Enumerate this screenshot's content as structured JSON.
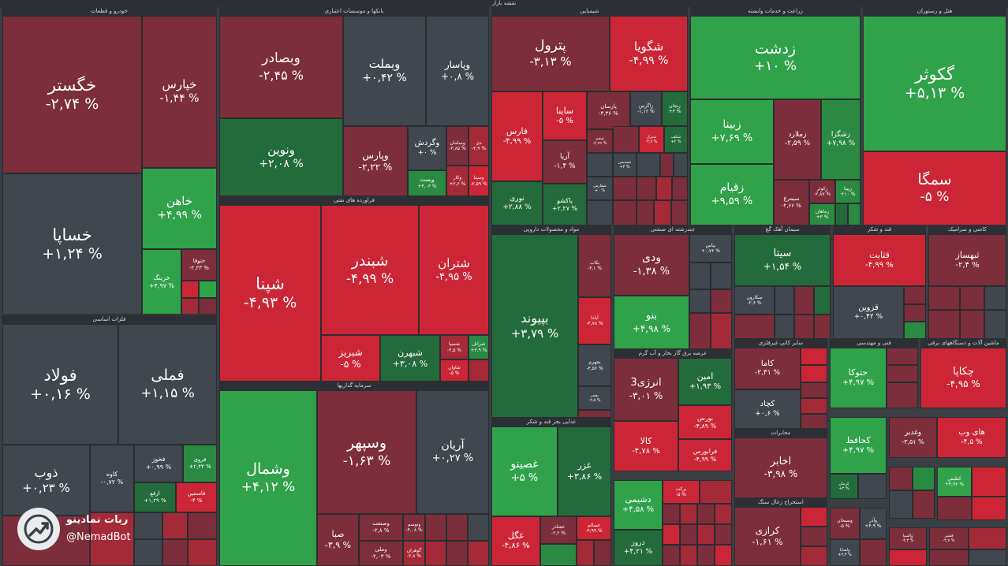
{
  "title": "نقشه بازار",
  "sectors": {
    "khodro": "خودرو و قطعات",
    "banks": "بانکها و موسسات اعتباری",
    "chemical": "شیمیایی",
    "agri": "زراعت و خدمات وابسته",
    "hotel": "هتل و رستوران",
    "metals": "فلزات اساسی",
    "refinery": "فراورده های نفتی",
    "investment": "سرمایه گذاریها",
    "mining": "استخراج کانه های فلزی",
    "food": "غذایی بجز قند و شکر",
    "pharma": "مواد و محصولات دارویی",
    "multi": "چندرشته ای صنعتی",
    "cement": "سیمان آهک گچ",
    "sugar": "قند و شکر",
    "tile": "کاشی و سرامیک",
    "utility": "عرضه برق گاز بخار و آب گرم",
    "electric": "ماشین آلات و دستگاههای برقی",
    "engineering": "فنی و مهندسی",
    "non_metal": "سایر کانی غیرفلزی",
    "computer": "رایانه",
    "transport": "حمل و نقل",
    "rubber": "لاستیک و پلاستیک",
    "insurance": "بیمه و بازنشستگی",
    "other_mining": "استخراج سایر معادن",
    "pc": "محصولات کاغذی",
    "machinery": "ماشین آلات و تجهیزات",
    "telecom": "مخابرات",
    "coal": "استخراج زغال سنگ"
  },
  "tiles": {
    "khegostar": {
      "name": "خگستر",
      "change": "-۲,۷۴ %"
    },
    "khaparsa": {
      "name": "خساپا",
      "change": "+۱,۲۴ %"
    },
    "khapars": {
      "name": "خپارس",
      "change": "-۱,۴۴ %"
    },
    "khahen": {
      "name": "خاهن",
      "change": "+۴,۹۹ %"
    },
    "kharing": {
      "name": "خرینگ",
      "change": "+۴,۹۷ %"
    },
    "khotoka": {
      "name": "ختوقا",
      "change": "-۲,۲۳ %"
    },
    "vebsader": {
      "name": "وبصادر",
      "change": "-۲,۴۵ %"
    },
    "vebmelat": {
      "name": "وبملت",
      "change": "+۰,۴۲ %"
    },
    "vapasar": {
      "name": "وپاسار",
      "change": "+۰,۸ %"
    },
    "vanovin": {
      "name": "ونوین",
      "change": "+۲,۰۸ %"
    },
    "vapars": {
      "name": "وپارس",
      "change": "-۲,۲۲ %"
    },
    "vegardesh": {
      "name": "وگردش",
      "change": "+۰ %"
    },
    "vesamen": {
      "name": "وسامان",
      "change": "-۳,۸۵ %"
    },
    "vedey": {
      "name": "دی",
      "change": "-۳,۹ %"
    },
    "vekar": {
      "name": "وکار",
      "change": "+۲,۶ %"
    },
    "vesina": {
      "name": "وسینا",
      "change": "-۲,۵۹ %"
    },
    "vest": {
      "name": "وپست",
      "change": "+۴,۰۳ %"
    },
    "petrol": {
      "name": "پترول",
      "change": "-۳,۱۳ %"
    },
    "shegoya": {
      "name": "شگویا",
      "change": "-۴,۹۹ %"
    },
    "fars": {
      "name": "فارس",
      "change": "-۴,۹۹ %"
    },
    "saina": {
      "name": "ساینا",
      "change": "-۵ %"
    },
    "parsan": {
      "name": "پارسان",
      "change": "-۳,۳۶ %"
    },
    "zagros": {
      "name": "زاگرس",
      "change": "-۱,۱۲ %"
    },
    "zanjan": {
      "name": "زنجان",
      "change": "+۳ %"
    },
    "aria": {
      "name": "آریا",
      "change": "-۱,۴ %"
    },
    "noori": {
      "name": "نوری",
      "change": "+۲,۸۸ %"
    },
    "pakhsh": {
      "name": "پاکشو",
      "change": "+۲,۲۷ %"
    },
    "ghadir": {
      "name": "شجم",
      "change": "-۲,۹۹ %"
    },
    "shiraz": {
      "name": "شیراز",
      "change": "-۴,۷ %"
    },
    "shkeb": {
      "name": "شکف",
      "change": "+۴ %"
    },
    "shpadir": {
      "name": "شپدیس",
      "change": "+۳ %"
    },
    "sharafs": {
      "name": "شفارس",
      "change": "+۰ %"
    },
    "gakoosar": {
      "name": "گکوثر",
      "change": "+۵,۱۳ %"
    },
    "semga": {
      "name": "سمگا",
      "change": "-۵ %"
    },
    "zedasht": {
      "name": "زدشت",
      "change": "+۱۰ %"
    },
    "zobina": {
      "name": "زبینا",
      "change": "+۷,۶۹ %"
    },
    "zemlard": {
      "name": "زملارد",
      "change": "-۲,۵۹ %"
    },
    "zeshgza": {
      "name": "زشگزا",
      "change": "+۷,۹۸ %"
    },
    "zeghiam": {
      "name": "زقیام",
      "change": "+۹,۵۹ %"
    },
    "sibmorgh": {
      "name": "سیمرغ",
      "change": "-۲,۶۶ %"
    },
    "zakosar": {
      "name": "زکوثر",
      "change": "-۲,۸۷ %"
    },
    "zemahya": {
      "name": "زماهان",
      "change": "+۳ %"
    },
    "zepina": {
      "name": "زپینا",
      "change": "+۱۰ %"
    },
    "foolad": {
      "name": "فولاد",
      "change": "+۰,۱۶ %"
    },
    "fameli": {
      "name": "فملی",
      "change": "+۱,۱۵ %"
    },
    "zob": {
      "name": "ذوب",
      "change": "+۰,۲۳ %"
    },
    "kave": {
      "name": "کاوه",
      "change": "-۰,۷۲ %"
    },
    "fakhooz": {
      "name": "فخوز",
      "change": "+۰,۹۹ %"
    },
    "frooy": {
      "name": "فروی",
      "change": "+۲,۴۳ %"
    },
    "arfa": {
      "name": "ارفع",
      "change": "+۱,۲۹ %"
    },
    "fasmin": {
      "name": "فاسمین",
      "change": "-۴ %"
    },
    "shepna": {
      "name": "شپنا",
      "change": "-۴,۹۳ %"
    },
    "shabandar": {
      "name": "شبندر",
      "change": "-۴,۹۹ %"
    },
    "shetran": {
      "name": "شتران",
      "change": "-۴,۹۵ %"
    },
    "shabriz": {
      "name": "شبریز",
      "change": "-۵ %"
    },
    "shebehran": {
      "name": "شبهرن",
      "change": "+۳,۰۸ %"
    },
    "sheisa": {
      "name": "شسپا",
      "change": "-۴,۵ %"
    },
    "shranol": {
      "name": "شرانل",
      "change": "+۳,۹ %"
    },
    "shavan": {
      "name": "شاوان",
      "change": "-۵ %"
    },
    "vesamal": {
      "name": "وشمال",
      "change": "+۴,۱۲ %"
    },
    "vasepahr": {
      "name": "وسپهر",
      "change": "-۱,۶۳ %"
    },
    "arian": {
      "name": "آریان",
      "change": "+۰,۲۷ %"
    },
    "saba": {
      "name": "صبا",
      "change": "-۳,۹ %"
    },
    "vesanat": {
      "name": "وصنعت",
      "change": "-۲,۸ %"
    },
    "vatoosa": {
      "name": "وتوسم",
      "change": "-۴,۰۸ %"
    },
    "vemeli": {
      "name": "وملی",
      "change": "-۲,۰۳ %"
    },
    "gohar": {
      "name": "گوهران",
      "change": "-۲,۸ %"
    },
    "bepeyvand": {
      "name": "بپیوند",
      "change": "+۳,۷۹ %"
    },
    "bikan": {
      "name": "بکاب",
      "change": "-۳,۱ %"
    },
    "batar": {
      "name": "آبادا",
      "change": "-۴,۷۸ %"
    },
    "bahar": {
      "name": "بجهرم",
      "change": "-۳,۵۶ %"
    },
    "baghor": {
      "name": "بفجر",
      "change": "-۲,۵ %"
    },
    "ghasino": {
      "name": "غصینو",
      "change": "+۵ %"
    },
    "ghazar": {
      "name": "غزر",
      "change": "+۳,۸۶ %"
    },
    "ghegel": {
      "name": "غگل",
      "change": "-۴,۸۶ %"
    },
    "ghesalem": {
      "name": "غسالم",
      "change": "-۴,۹۹ %"
    },
    "ghsha": {
      "name": "غشاذر",
      "change": "-۲,۲ %"
    },
    "vadi": {
      "name": "ودی",
      "change": "-۱,۳۸ %"
    },
    "vebno": {
      "name": "بنو",
      "change": "+۴,۹۸ %"
    },
    "vebras": {
      "name": "بپاس",
      "change": "+۰,۷۶ %"
    },
    "anergy": {
      "name": "انرژی3",
      "change": "-۳,۰۱ %"
    },
    "amin": {
      "name": "امین",
      "change": "+۱,۹۳ %"
    },
    "kala": {
      "name": "کالا",
      "change": "-۴,۷۸ %"
    },
    "boors": {
      "name": "بورس",
      "change": "-۴,۸۹ %"
    },
    "farabours": {
      "name": "فرابورس",
      "change": "-۴,۹۹ %"
    },
    "dashimi": {
      "name": "دشیمی",
      "change": "+۴,۵۸ %"
    },
    "daroo": {
      "name": "دروز",
      "change": "+۴,۲۱ %"
    },
    "barkat": {
      "name": "برکت",
      "change": "-۵ %"
    },
    "sita": {
      "name": "سیتا",
      "change": "+۱,۵۴ %"
    },
    "sekaroon": {
      "name": "سکارون",
      "change": "-۲,۶ %"
    },
    "ghasabet": {
      "name": "قثابت",
      "change": "-۴,۹۹ %"
    },
    "ghazvin": {
      "name": "قزوین",
      "change": "+۰,۴۲ %"
    },
    "tahsaz": {
      "name": "ثبهساز",
      "change": "-۲,۴ %"
    },
    "kama": {
      "name": "کاما",
      "change": "-۲,۳۱ %"
    },
    "kachad": {
      "name": "کچاد",
      "change": "+۰,۶ %"
    },
    "hotoka": {
      "name": "حتوکا",
      "change": "+۴,۹۷ %"
    },
    "chakapa": {
      "name": "چکاپا",
      "change": "-۴,۹۵ %"
    },
    "kehafez": {
      "name": "کحافظ",
      "change": "+۴,۹۷ %"
    },
    "vaghadir": {
      "name": "وغدیر",
      "change": "-۳,۵۱ %"
    },
    "haiweb": {
      "name": "های وب",
      "change": "-۴,۵ %"
    },
    "akhaber": {
      "name": "اخابر",
      "change": "-۳,۹۸ %"
    },
    "kerazi": {
      "name": "کرازی",
      "change": "-۱,۶۱ %"
    },
    "kaktoos": {
      "name": "کطبس",
      "change": "+۴,۹۶ %"
    },
    "vesbahan": {
      "name": "وسبحان",
      "change": "-۵ %"
    },
    "kerman": {
      "name": "کرمان",
      "change": "+۳ %"
    },
    "vaboo": {
      "name": "وآذر",
      "change": "+۴,۹ %"
    },
    "vealsa": {
      "name": "والسپا",
      "change": "-۴,۳ %"
    },
    "ghesh": {
      "name": "قشیر",
      "change": "-۳,۷ %"
    },
    "vahoos": {
      "name": "ولساپا",
      "change": "+۲,۳ %"
    }
  },
  "watermark": {
    "name": "ربات نمادینو",
    "handle": "@NemadBot"
  }
}
